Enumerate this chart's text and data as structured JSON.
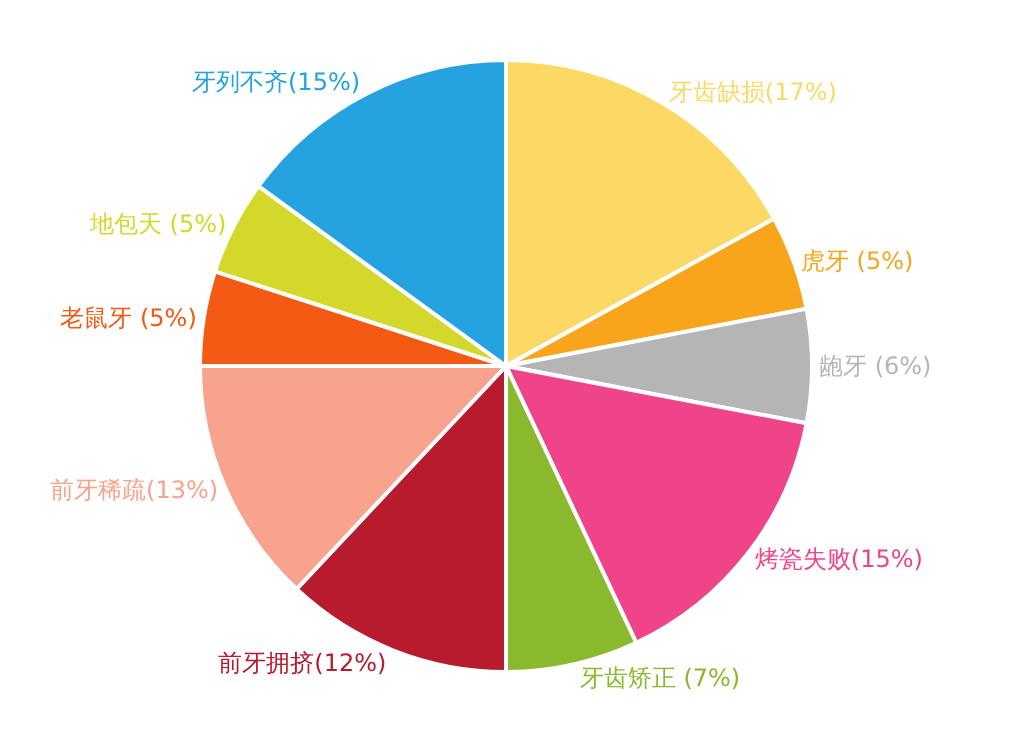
{
  "chart_data": {
    "type": "pie",
    "categories": [
      "牙齿缺损(17%)",
      "虎牙 (5%)",
      "龅牙 (6%)",
      "烤瓷失败(15%)",
      "牙齿矫正 (7%)",
      "前牙拥挤(12%)",
      "前牙稀疏(13%)",
      "老鼠牙 (5%)",
      "地包天 (5%)",
      "牙列不齐(15%)"
    ],
    "values": [
      17,
      5,
      6,
      15,
      7,
      12,
      13,
      5,
      5,
      15
    ],
    "colors": [
      "#fcd965",
      "#f8a51c",
      "#b5b5b5",
      "#f0448a",
      "#8ab92e",
      "#b81b2e",
      "#f8a38d",
      "#f45a13",
      "#d4d82a",
      "#24a3e0"
    ],
    "legend": false
  }
}
